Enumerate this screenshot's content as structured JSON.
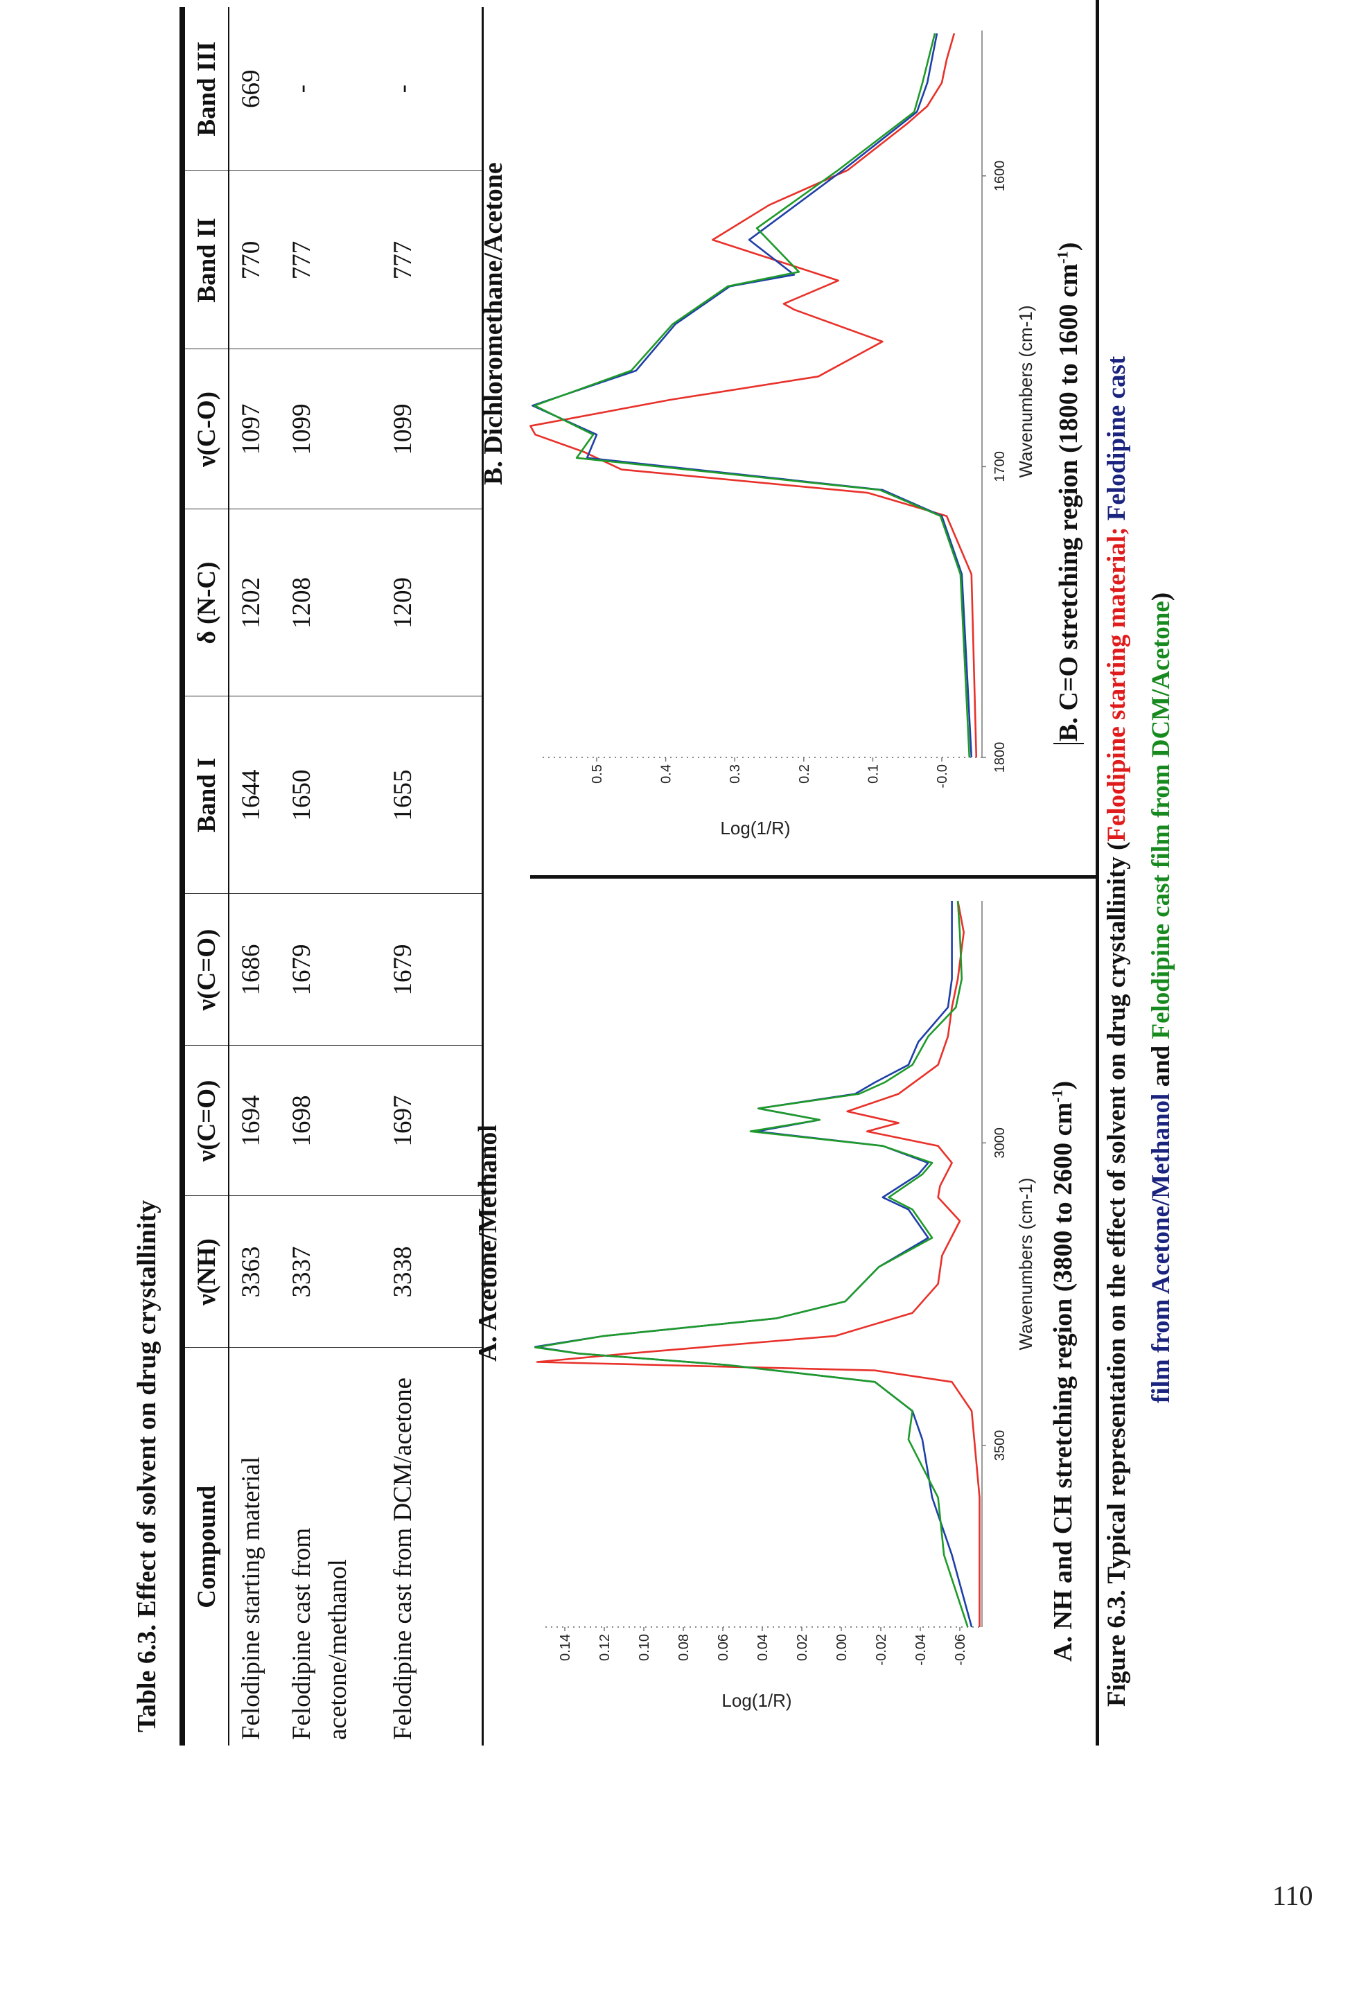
{
  "table": {
    "title": "Table 6.3. Effect of solvent on drug crystallinity",
    "headers": [
      "Compound",
      "ν(NH)",
      "ν(C=O)",
      "ν(C=O)",
      "Band I",
      "δ (N-C)",
      "ν(C-O)",
      "Band II",
      "Band III"
    ],
    "rows": [
      [
        "Felodipine starting material",
        "3363",
        "1694",
        "1686",
        "1644",
        "1202",
        "1097",
        "770",
        "669"
      ],
      [
        "Felodipine cast from acetone/methanol",
        "3337",
        "1698",
        "1679",
        "1650",
        "1208",
        "1099",
        "777",
        "-"
      ],
      [
        "Felodipine cast from DCM/acetone",
        "3338",
        "1697",
        "1679",
        "1655",
        "1209",
        "1099",
        "777",
        "-"
      ]
    ]
  },
  "panels": {
    "a_title": "A. Acetone/Methanol",
    "b_title": "B. Dichloromethane/Acetone",
    "a_caption": "A. NH and CH stretching region (3800 to 2600 cm",
    "b_caption": "B. C=O stretching region (1800 to 1600 cm",
    "caption_sup": "-1",
    "caption_close": ")"
  },
  "figure_caption": {
    "prefix": "Figure 6.3. Typical representation on the effect of solvent on drug crystallinity (",
    "red": "Felodipine starting material;",
    "blue_line1": "Felodipine cast",
    "blue_line2": "film from Acetone/Methanol",
    "and": "and",
    "green": "Felodipine cast film from DCM/Acetone",
    "suffix": ")"
  },
  "colors": {
    "red": "#e8312a",
    "blue": "#1f3fa8",
    "green": "#1e9a2a",
    "caption_red": "#e01b1b",
    "caption_blue": "#1a237e",
    "caption_green": "#178a1f"
  },
  "page_number": "110",
  "chart_data": [
    {
      "type": "line",
      "title": "A. Acetone/Methanol",
      "xlabel": "Wavenumbers (cm-1)",
      "ylabel": "Log(1/R)",
      "xlim": [
        3800,
        2600
      ],
      "ylim": [
        -0.07,
        0.155
      ],
      "xticks": [
        3500,
        3000
      ],
      "yticks": [
        "0.14",
        "0.12",
        "0.10",
        "0.08",
        "0.06",
        "0.04",
        "0.02",
        "0.00",
        "-0.02",
        "-0.04",
        "-0.06"
      ],
      "grid": false,
      "series": [
        {
          "name": "Felodipine starting material",
          "color": "#e8312a",
          "points": [
            [
              3800,
              -0.07
            ],
            [
              3586,
              -0.07
            ],
            [
              3443,
              -0.066
            ],
            [
              3395,
              -0.056
            ],
            [
              3376,
              -0.017
            ],
            [
              3362,
              0.154
            ],
            [
              3348,
              0.108
            ],
            [
              3319,
              0.003
            ],
            [
              3281,
              -0.036
            ],
            [
              3233,
              -0.049
            ],
            [
              3186,
              -0.051
            ],
            [
              3129,
              -0.06
            ],
            [
              3090,
              -0.049
            ],
            [
              3071,
              -0.05
            ],
            [
              3033,
              -0.056
            ],
            [
              3005,
              -0.049
            ],
            [
              2981,
              -0.013
            ],
            [
              2967,
              -0.029
            ],
            [
              2948,
              -0.003
            ],
            [
              2919,
              -0.029
            ],
            [
              2871,
              -0.049
            ],
            [
              2824,
              -0.054
            ],
            [
              2776,
              -0.056
            ],
            [
              2729,
              -0.059
            ],
            [
              2652,
              -0.062
            ],
            [
              2600,
              -0.059
            ]
          ]
        },
        {
          "name": "Felodipine cast film from Acetone/Methanol",
          "color": "#1f3fa8",
          "points": [
            [
              3800,
              -0.066
            ],
            [
              3681,
              -0.056
            ],
            [
              3586,
              -0.046
            ],
            [
              3490,
              -0.041
            ],
            [
              3443,
              -0.036
            ],
            [
              3395,
              -0.017
            ],
            [
              3367,
              0.058
            ],
            [
              3348,
              0.133
            ],
            [
              3337,
              0.155
            ],
            [
              3319,
              0.12
            ],
            [
              3290,
              0.033
            ],
            [
              3262,
              -0.002
            ],
            [
              3205,
              -0.019
            ],
            [
              3157,
              -0.044
            ],
            [
              3110,
              -0.034
            ],
            [
              3090,
              -0.021
            ],
            [
              3052,
              -0.039
            ],
            [
              3033,
              -0.044
            ],
            [
              3005,
              -0.021
            ],
            [
              2981,
              0.043
            ],
            [
              2962,
              0.011
            ],
            [
              2943,
              0.042
            ],
            [
              2919,
              -0.007
            ],
            [
              2900,
              -0.017
            ],
            [
              2871,
              -0.034
            ],
            [
              2833,
              -0.039
            ],
            [
              2776,
              -0.054
            ],
            [
              2729,
              -0.056
            ],
            [
              2652,
              -0.056
            ],
            [
              2600,
              -0.056
            ]
          ]
        },
        {
          "name": "Felodipine cast film from DCM/Acetone",
          "color": "#1e9a2a",
          "points": [
            [
              3800,
              -0.064
            ],
            [
              3681,
              -0.052
            ],
            [
              3586,
              -0.049
            ],
            [
              3490,
              -0.034
            ],
            [
              3443,
              -0.036
            ],
            [
              3395,
              -0.017
            ],
            [
              3367,
              0.058
            ],
            [
              3348,
              0.133
            ],
            [
              3338,
              0.155
            ],
            [
              3319,
              0.12
            ],
            [
              3290,
              0.033
            ],
            [
              3262,
              -0.002
            ],
            [
              3205,
              -0.019
            ],
            [
              3157,
              -0.046
            ],
            [
              3110,
              -0.036
            ],
            [
              3090,
              -0.024
            ],
            [
              3052,
              -0.041
            ],
            [
              3033,
              -0.046
            ],
            [
              3005,
              -0.021
            ],
            [
              2981,
              0.046
            ],
            [
              2962,
              0.011
            ],
            [
              2943,
              0.042
            ],
            [
              2919,
              -0.009
            ],
            [
              2900,
              -0.022
            ],
            [
              2871,
              -0.036
            ],
            [
              2824,
              -0.044
            ],
            [
              2776,
              -0.058
            ],
            [
              2729,
              -0.061
            ],
            [
              2652,
              -0.06
            ],
            [
              2600,
              -0.059
            ]
          ]
        }
      ]
    },
    {
      "type": "line",
      "title": "B. Dichloromethane/Acetone",
      "xlabel": "Wavenumbers (cm-1)",
      "ylabel": "Log(1/R)",
      "xlim": [
        1800,
        1550
      ],
      "ylim": [
        -0.05,
        0.58
      ],
      "xticks": [
        1800,
        1700,
        1600
      ],
      "yticks": [
        "0.5",
        "0.4",
        "0.3",
        "0.2",
        "0.1",
        "-0.0"
      ],
      "grid": false,
      "series": [
        {
          "name": "Felodipine starting material",
          "color": "#e8312a",
          "points": [
            [
              1800,
              -0.05
            ],
            [
              1737,
              -0.043
            ],
            [
              1717,
              -0.007
            ],
            [
              1709,
              0.107
            ],
            [
              1701,
              0.464
            ],
            [
              1695,
              0.518
            ],
            [
              1689,
              0.589
            ],
            [
              1686,
              0.596
            ],
            [
              1677,
              0.393
            ],
            [
              1669,
              0.179
            ],
            [
              1657,
              0.086
            ],
            [
              1646,
              0.214
            ],
            [
              1644,
              0.229
            ],
            [
              1636,
              0.15
            ],
            [
              1622,
              0.332
            ],
            [
              1610,
              0.25
            ],
            [
              1598,
              0.136
            ],
            [
              1582,
              0.05
            ],
            [
              1576,
              0.021
            ],
            [
              1568,
              0.0
            ],
            [
              1560,
              -0.007
            ],
            [
              1551,
              -0.018
            ]
          ]
        },
        {
          "name": "Felodipine cast film from Acetone/Methanol",
          "color": "#1f3fa8",
          "points": [
            [
              1800,
              -0.043
            ],
            [
              1737,
              -0.029
            ],
            [
              1717,
              0.0
            ],
            [
              1708,
              0.086
            ],
            [
              1697,
              0.514
            ],
            [
              1689,
              0.5
            ],
            [
              1679,
              0.593
            ],
            [
              1667,
              0.443
            ],
            [
              1651,
              0.386
            ],
            [
              1638,
              0.307
            ],
            [
              1634,
              0.214
            ],
            [
              1622,
              0.279
            ],
            [
              1598,
              0.143
            ],
            [
              1578,
              0.036
            ],
            [
              1568,
              0.021
            ],
            [
              1551,
              0.007
            ]
          ]
        },
        {
          "name": "Felodipine cast film from DCM/Acetone",
          "color": "#1e9a2a",
          "points": [
            [
              1800,
              -0.04
            ],
            [
              1737,
              -0.027
            ],
            [
              1717,
              0.002
            ],
            [
              1708,
              0.09
            ],
            [
              1697,
              0.529
            ],
            [
              1689,
              0.505
            ],
            [
              1679,
              0.59
            ],
            [
              1667,
              0.45
            ],
            [
              1651,
              0.39
            ],
            [
              1638,
              0.31
            ],
            [
              1633,
              0.207
            ],
            [
              1618,
              0.268
            ],
            [
              1598,
              0.15
            ],
            [
              1578,
              0.04
            ],
            [
              1568,
              0.028
            ],
            [
              1551,
              0.01
            ]
          ]
        }
      ]
    }
  ]
}
